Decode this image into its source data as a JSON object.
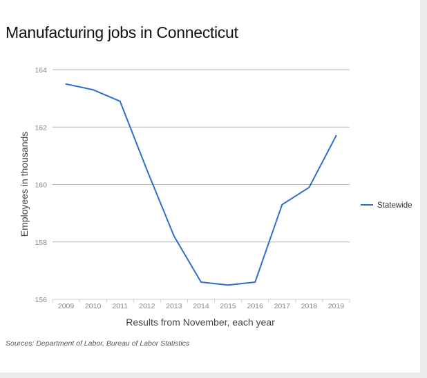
{
  "title": "Manufacturing jobs in Connecticut",
  "source": "Sources: Department of Labor, Bureau of Labor Statistics",
  "colors": {
    "series": "#2b6fce",
    "grid": "#b5b5b5",
    "axis": "#cccccc"
  },
  "chart_data": {
    "type": "line",
    "title": "Manufacturing jobs in Connecticut",
    "xlabel": "Results from November, each year",
    "ylabel": "Employees in thousands",
    "x": [
      "2009",
      "2010",
      "2011",
      "2012",
      "2013",
      "2014",
      "2015",
      "2016",
      "2017",
      "2018",
      "2019"
    ],
    "series": [
      {
        "name": "Statewide",
        "values": [
          163.5,
          163.3,
          162.9,
          160.5,
          158.2,
          156.6,
          156.5,
          156.6,
          159.3,
          159.9,
          161.7
        ]
      }
    ],
    "ylim": [
      156,
      164
    ],
    "yticks": [
      "156",
      "158",
      "160",
      "162",
      "164"
    ],
    "grid": true,
    "legend": "right"
  }
}
